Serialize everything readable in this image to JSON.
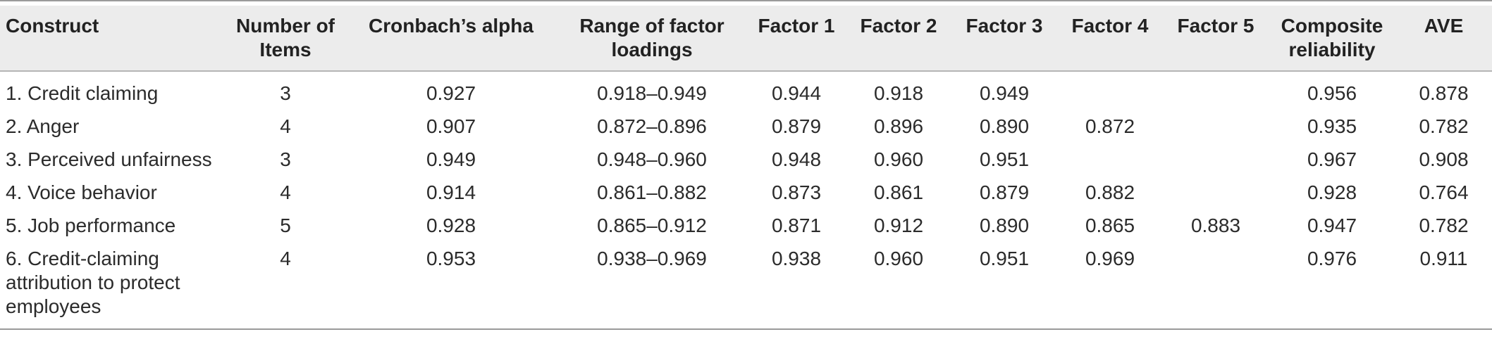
{
  "table": {
    "headers": [
      "Construct",
      "Number of Items",
      "Cronbach’s alpha",
      "Range of factor loadings",
      "Factor 1",
      "Factor 2",
      "Factor 3",
      "Factor 4",
      "Factor 5",
      "Composite reliability",
      "AVE"
    ],
    "rows": [
      [
        "1. Credit claiming",
        "3",
        "0.927",
        "0.918–0.949",
        "0.944",
        "0.918",
        "0.949",
        "",
        "",
        "0.956",
        "0.878"
      ],
      [
        "2. Anger",
        "4",
        "0.907",
        "0.872–0.896",
        "0.879",
        "0.896",
        "0.890",
        "0.872",
        "",
        "0.935",
        "0.782"
      ],
      [
        "3. Perceived unfairness",
        "3",
        "0.949",
        "0.948–0.960",
        "0.948",
        "0.960",
        "0.951",
        "",
        "",
        "0.967",
        "0.908"
      ],
      [
        "4. Voice behavior",
        "4",
        "0.914",
        "0.861–0.882",
        "0.873",
        "0.861",
        "0.879",
        "0.882",
        "",
        "0.928",
        "0.764"
      ],
      [
        "5. Job performance",
        "5",
        "0.928",
        "0.865–0.912",
        "0.871",
        "0.912",
        "0.890",
        "0.865",
        "0.883",
        "0.947",
        "0.782"
      ],
      [
        "6. Credit-claiming attribution to protect employees",
        "4",
        "0.953",
        "0.938–0.969",
        "0.938",
        "0.960",
        "0.951",
        "0.969",
        "",
        "0.976",
        "0.911"
      ]
    ]
  }
}
